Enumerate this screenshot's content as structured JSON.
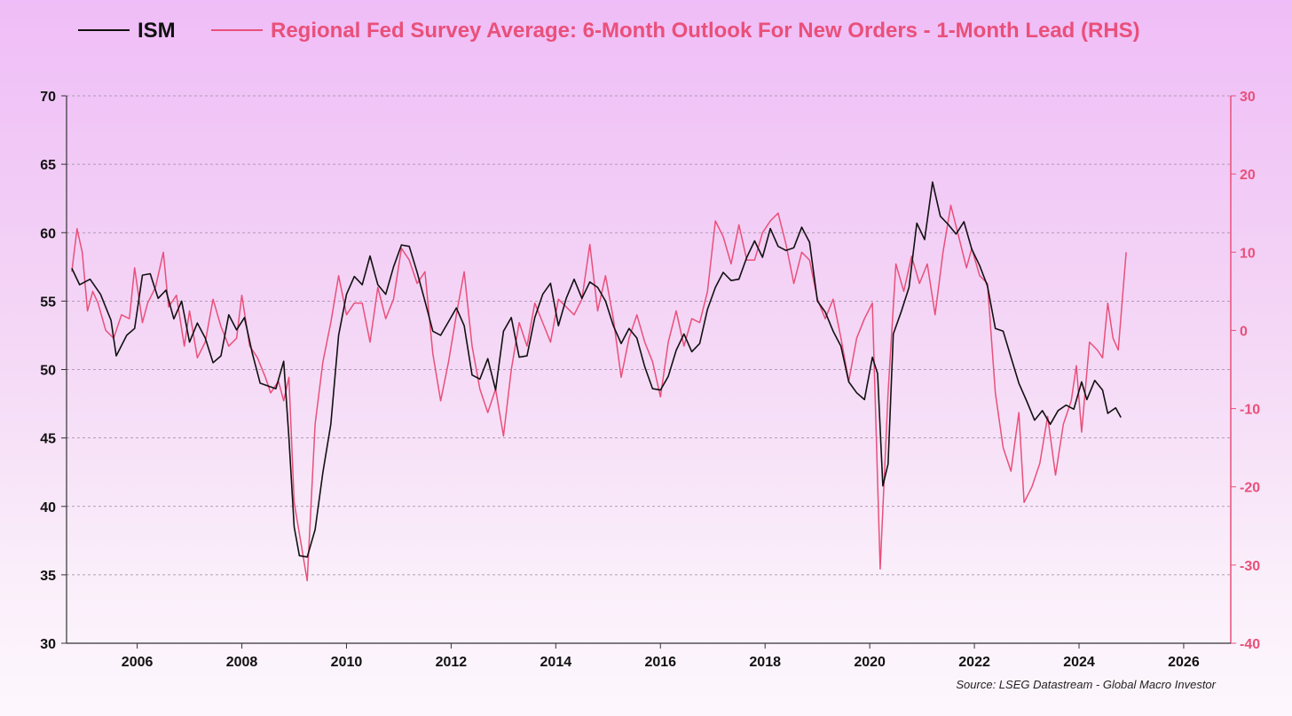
{
  "chart_data": {
    "type": "line",
    "title": "",
    "legend_position": "top",
    "source": "Source: LSEG Datastream - Global Macro Investor",
    "x_ticks": [
      "2006",
      "2008",
      "2010",
      "2012",
      "2014",
      "2016",
      "2018",
      "2020",
      "2022",
      "2024",
      "2026"
    ],
    "y_left": {
      "range": [
        30,
        70
      ],
      "ticks": [
        "70",
        "65",
        "60",
        "55",
        "50",
        "45",
        "40",
        "35",
        "30"
      ]
    },
    "y_right": {
      "range": [
        -40,
        30
      ],
      "ticks": [
        "30",
        "20",
        "10",
        "0",
        "-10",
        "-20",
        "-30",
        "-40"
      ]
    },
    "grid": true,
    "series": [
      {
        "name": "ISM",
        "axis": "left",
        "color": "#111111",
        "points": [
          [
            2004.75,
            57.4
          ],
          [
            2004.9,
            56.2
          ],
          [
            2005.1,
            56.6
          ],
          [
            2005.3,
            55.5
          ],
          [
            2005.5,
            53.6
          ],
          [
            2005.6,
            51.0
          ],
          [
            2005.8,
            52.5
          ],
          [
            2005.95,
            53.0
          ],
          [
            2006.1,
            56.9
          ],
          [
            2006.25,
            57.0
          ],
          [
            2006.4,
            55.2
          ],
          [
            2006.55,
            55.8
          ],
          [
            2006.7,
            53.7
          ],
          [
            2006.85,
            55.0
          ],
          [
            2007.0,
            52.0
          ],
          [
            2007.15,
            53.4
          ],
          [
            2007.3,
            52.3
          ],
          [
            2007.45,
            50.5
          ],
          [
            2007.6,
            51.0
          ],
          [
            2007.75,
            54.0
          ],
          [
            2007.9,
            52.9
          ],
          [
            2008.05,
            53.8
          ],
          [
            2008.2,
            51.2
          ],
          [
            2008.35,
            49.0
          ],
          [
            2008.5,
            48.8
          ],
          [
            2008.65,
            48.6
          ],
          [
            2008.8,
            50.6
          ],
          [
            2008.9,
            45.0
          ],
          [
            2009.0,
            38.5
          ],
          [
            2009.1,
            36.4
          ],
          [
            2009.25,
            36.3
          ],
          [
            2009.4,
            38.3
          ],
          [
            2009.55,
            42.5
          ],
          [
            2009.7,
            46.0
          ],
          [
            2009.85,
            52.5
          ],
          [
            2010.0,
            55.5
          ],
          [
            2010.15,
            56.8
          ],
          [
            2010.3,
            56.2
          ],
          [
            2010.45,
            58.3
          ],
          [
            2010.6,
            56.2
          ],
          [
            2010.75,
            55.5
          ],
          [
            2010.9,
            57.5
          ],
          [
            2011.05,
            59.1
          ],
          [
            2011.2,
            59.0
          ],
          [
            2011.35,
            57.1
          ],
          [
            2011.5,
            55.0
          ],
          [
            2011.65,
            52.8
          ],
          [
            2011.8,
            52.5
          ],
          [
            2011.95,
            53.5
          ],
          [
            2012.1,
            54.5
          ],
          [
            2012.25,
            53.2
          ],
          [
            2012.4,
            49.6
          ],
          [
            2012.55,
            49.3
          ],
          [
            2012.7,
            50.8
          ],
          [
            2012.85,
            48.5
          ],
          [
            2013.0,
            52.8
          ],
          [
            2013.15,
            53.8
          ],
          [
            2013.3,
            50.9
          ],
          [
            2013.45,
            51.0
          ],
          [
            2013.6,
            53.8
          ],
          [
            2013.75,
            55.5
          ],
          [
            2013.9,
            56.3
          ],
          [
            2014.05,
            53.2
          ],
          [
            2014.2,
            55.2
          ],
          [
            2014.35,
            56.6
          ],
          [
            2014.5,
            55.2
          ],
          [
            2014.65,
            56.4
          ],
          [
            2014.8,
            56.0
          ],
          [
            2014.95,
            55.0
          ],
          [
            2015.1,
            53.2
          ],
          [
            2015.25,
            51.9
          ],
          [
            2015.4,
            53.0
          ],
          [
            2015.55,
            52.3
          ],
          [
            2015.7,
            50.2
          ],
          [
            2015.85,
            48.6
          ],
          [
            2016.0,
            48.5
          ],
          [
            2016.15,
            49.5
          ],
          [
            2016.3,
            51.4
          ],
          [
            2016.45,
            52.6
          ],
          [
            2016.6,
            51.3
          ],
          [
            2016.75,
            51.9
          ],
          [
            2016.9,
            54.4
          ],
          [
            2017.05,
            56.0
          ],
          [
            2017.2,
            57.1
          ],
          [
            2017.35,
            56.5
          ],
          [
            2017.5,
            56.6
          ],
          [
            2017.65,
            58.2
          ],
          [
            2017.8,
            59.4
          ],
          [
            2017.95,
            58.2
          ],
          [
            2018.1,
            60.3
          ],
          [
            2018.25,
            59.0
          ],
          [
            2018.4,
            58.7
          ],
          [
            2018.55,
            58.9
          ],
          [
            2018.7,
            60.4
          ],
          [
            2018.85,
            59.3
          ],
          [
            2019.0,
            55.0
          ],
          [
            2019.15,
            54.2
          ],
          [
            2019.3,
            52.8
          ],
          [
            2019.45,
            51.7
          ],
          [
            2019.6,
            49.1
          ],
          [
            2019.75,
            48.3
          ],
          [
            2019.9,
            47.8
          ],
          [
            2020.05,
            50.9
          ],
          [
            2020.15,
            49.7
          ],
          [
            2020.25,
            41.5
          ],
          [
            2020.35,
            43.1
          ],
          [
            2020.45,
            52.6
          ],
          [
            2020.6,
            54.2
          ],
          [
            2020.75,
            56.0
          ],
          [
            2020.9,
            60.7
          ],
          [
            2021.05,
            59.5
          ],
          [
            2021.2,
            63.7
          ],
          [
            2021.35,
            61.2
          ],
          [
            2021.5,
            60.6
          ],
          [
            2021.65,
            59.9
          ],
          [
            2021.8,
            60.8
          ],
          [
            2021.95,
            58.8
          ],
          [
            2022.1,
            57.6
          ],
          [
            2022.25,
            56.1
          ],
          [
            2022.4,
            53.0
          ],
          [
            2022.55,
            52.8
          ],
          [
            2022.7,
            50.9
          ],
          [
            2022.85,
            49.0
          ],
          [
            2023.0,
            47.7
          ],
          [
            2023.15,
            46.3
          ],
          [
            2023.3,
            47.0
          ],
          [
            2023.45,
            46.0
          ],
          [
            2023.6,
            47.0
          ],
          [
            2023.75,
            47.4
          ],
          [
            2023.9,
            47.1
          ],
          [
            2024.05,
            49.1
          ],
          [
            2024.15,
            47.8
          ],
          [
            2024.3,
            49.2
          ],
          [
            2024.45,
            48.5
          ],
          [
            2024.55,
            46.8
          ],
          [
            2024.7,
            47.2
          ],
          [
            2024.8,
            46.5
          ]
        ]
      },
      {
        "name": "Regional Fed Survey Average: 6-Month Outlook For New Orders - 1-Month Lead (RHS)",
        "axis": "right",
        "color": "#e9507a",
        "points": [
          [
            2004.75,
            7.5
          ],
          [
            2004.85,
            13.0
          ],
          [
            2004.95,
            10.0
          ],
          [
            2005.05,
            2.5
          ],
          [
            2005.15,
            5.0
          ],
          [
            2005.25,
            3.5
          ],
          [
            2005.4,
            0.0
          ],
          [
            2005.55,
            -1.0
          ],
          [
            2005.7,
            2.0
          ],
          [
            2005.85,
            1.5
          ],
          [
            2005.95,
            8.0
          ],
          [
            2006.1,
            1.0
          ],
          [
            2006.2,
            3.5
          ],
          [
            2006.35,
            5.5
          ],
          [
            2006.5,
            10.0
          ],
          [
            2006.6,
            3.0
          ],
          [
            2006.75,
            4.5
          ],
          [
            2006.9,
            -2.0
          ],
          [
            2007.0,
            2.5
          ],
          [
            2007.15,
            -3.5
          ],
          [
            2007.3,
            -1.5
          ],
          [
            2007.45,
            4.0
          ],
          [
            2007.6,
            0.5
          ],
          [
            2007.75,
            -2.0
          ],
          [
            2007.9,
            -1.0
          ],
          [
            2008.0,
            4.5
          ],
          [
            2008.15,
            -2.0
          ],
          [
            2008.3,
            -3.5
          ],
          [
            2008.45,
            -6.0
          ],
          [
            2008.55,
            -8.0
          ],
          [
            2008.7,
            -6.5
          ],
          [
            2008.8,
            -9.0
          ],
          [
            2008.9,
            -6.0
          ],
          [
            2009.0,
            -22.0
          ],
          [
            2009.1,
            -26.0
          ],
          [
            2009.25,
            -32.0
          ],
          [
            2009.4,
            -12.0
          ],
          [
            2009.55,
            -4.0
          ],
          [
            2009.7,
            1.0
          ],
          [
            2009.85,
            7.0
          ],
          [
            2010.0,
            2.0
          ],
          [
            2010.15,
            3.5
          ],
          [
            2010.3,
            3.5
          ],
          [
            2010.45,
            -1.5
          ],
          [
            2010.6,
            5.5
          ],
          [
            2010.75,
            1.5
          ],
          [
            2010.9,
            4.0
          ],
          [
            2011.05,
            10.5
          ],
          [
            2011.2,
            9.0
          ],
          [
            2011.35,
            6.0
          ],
          [
            2011.5,
            7.5
          ],
          [
            2011.65,
            -3.0
          ],
          [
            2011.8,
            -9.0
          ],
          [
            2011.95,
            -4.0
          ],
          [
            2012.1,
            2.0
          ],
          [
            2012.25,
            7.5
          ],
          [
            2012.4,
            -2.0
          ],
          [
            2012.55,
            -7.5
          ],
          [
            2012.7,
            -10.5
          ],
          [
            2012.85,
            -7.5
          ],
          [
            2013.0,
            -13.5
          ],
          [
            2013.15,
            -5.0
          ],
          [
            2013.3,
            1.0
          ],
          [
            2013.45,
            -2.0
          ],
          [
            2013.6,
            3.5
          ],
          [
            2013.75,
            1.0
          ],
          [
            2013.9,
            -1.5
          ],
          [
            2014.05,
            4.0
          ],
          [
            2014.2,
            3.0
          ],
          [
            2014.35,
            2.0
          ],
          [
            2014.5,
            4.0
          ],
          [
            2014.65,
            11.0
          ],
          [
            2014.8,
            2.5
          ],
          [
            2014.95,
            7.0
          ],
          [
            2015.1,
            1.5
          ],
          [
            2015.25,
            -6.0
          ],
          [
            2015.4,
            -1.0
          ],
          [
            2015.55,
            2.0
          ],
          [
            2015.7,
            -1.5
          ],
          [
            2015.85,
            -4.0
          ],
          [
            2016.0,
            -8.5
          ],
          [
            2016.15,
            -1.5
          ],
          [
            2016.3,
            2.5
          ],
          [
            2016.45,
            -2.0
          ],
          [
            2016.6,
            1.5
          ],
          [
            2016.75,
            1.0
          ],
          [
            2016.9,
            5.0
          ],
          [
            2017.05,
            14.0
          ],
          [
            2017.2,
            12.0
          ],
          [
            2017.35,
            8.5
          ],
          [
            2017.5,
            13.5
          ],
          [
            2017.65,
            9.0
          ],
          [
            2017.8,
            9.0
          ],
          [
            2017.95,
            12.5
          ],
          [
            2018.1,
            14.0
          ],
          [
            2018.25,
            15.0
          ],
          [
            2018.4,
            11.0
          ],
          [
            2018.55,
            6.0
          ],
          [
            2018.7,
            10.0
          ],
          [
            2018.85,
            9.0
          ],
          [
            2019.0,
            4.0
          ],
          [
            2019.15,
            1.5
          ],
          [
            2019.3,
            4.0
          ],
          [
            2019.45,
            -1.0
          ],
          [
            2019.6,
            -6.5
          ],
          [
            2019.75,
            -1.0
          ],
          [
            2019.9,
            1.5
          ],
          [
            2020.05,
            3.5
          ],
          [
            2020.2,
            -30.5
          ],
          [
            2020.35,
            -8.0
          ],
          [
            2020.5,
            8.5
          ],
          [
            2020.65,
            5.0
          ],
          [
            2020.8,
            9.5
          ],
          [
            2020.95,
            6.0
          ],
          [
            2021.1,
            8.5
          ],
          [
            2021.25,
            2.0
          ],
          [
            2021.4,
            10.0
          ],
          [
            2021.55,
            16.0
          ],
          [
            2021.7,
            12.0
          ],
          [
            2021.85,
            8.0
          ],
          [
            2021.95,
            10.5
          ],
          [
            2022.1,
            7.0
          ],
          [
            2022.25,
            6.0
          ],
          [
            2022.4,
            -8.0
          ],
          [
            2022.55,
            -15.0
          ],
          [
            2022.7,
            -18.0
          ],
          [
            2022.85,
            -10.5
          ],
          [
            2022.95,
            -22.0
          ],
          [
            2023.1,
            -20.0
          ],
          [
            2023.25,
            -17.0
          ],
          [
            2023.4,
            -11.0
          ],
          [
            2023.55,
            -18.5
          ],
          [
            2023.7,
            -12.0
          ],
          [
            2023.85,
            -9.0
          ],
          [
            2023.95,
            -4.5
          ],
          [
            2024.05,
            -13.0
          ],
          [
            2024.2,
            -1.5
          ],
          [
            2024.35,
            -2.5
          ],
          [
            2024.45,
            -3.5
          ],
          [
            2024.55,
            3.5
          ],
          [
            2024.65,
            -1.0
          ],
          [
            2024.75,
            -2.5
          ],
          [
            2024.9,
            10.0
          ]
        ]
      }
    ]
  }
}
